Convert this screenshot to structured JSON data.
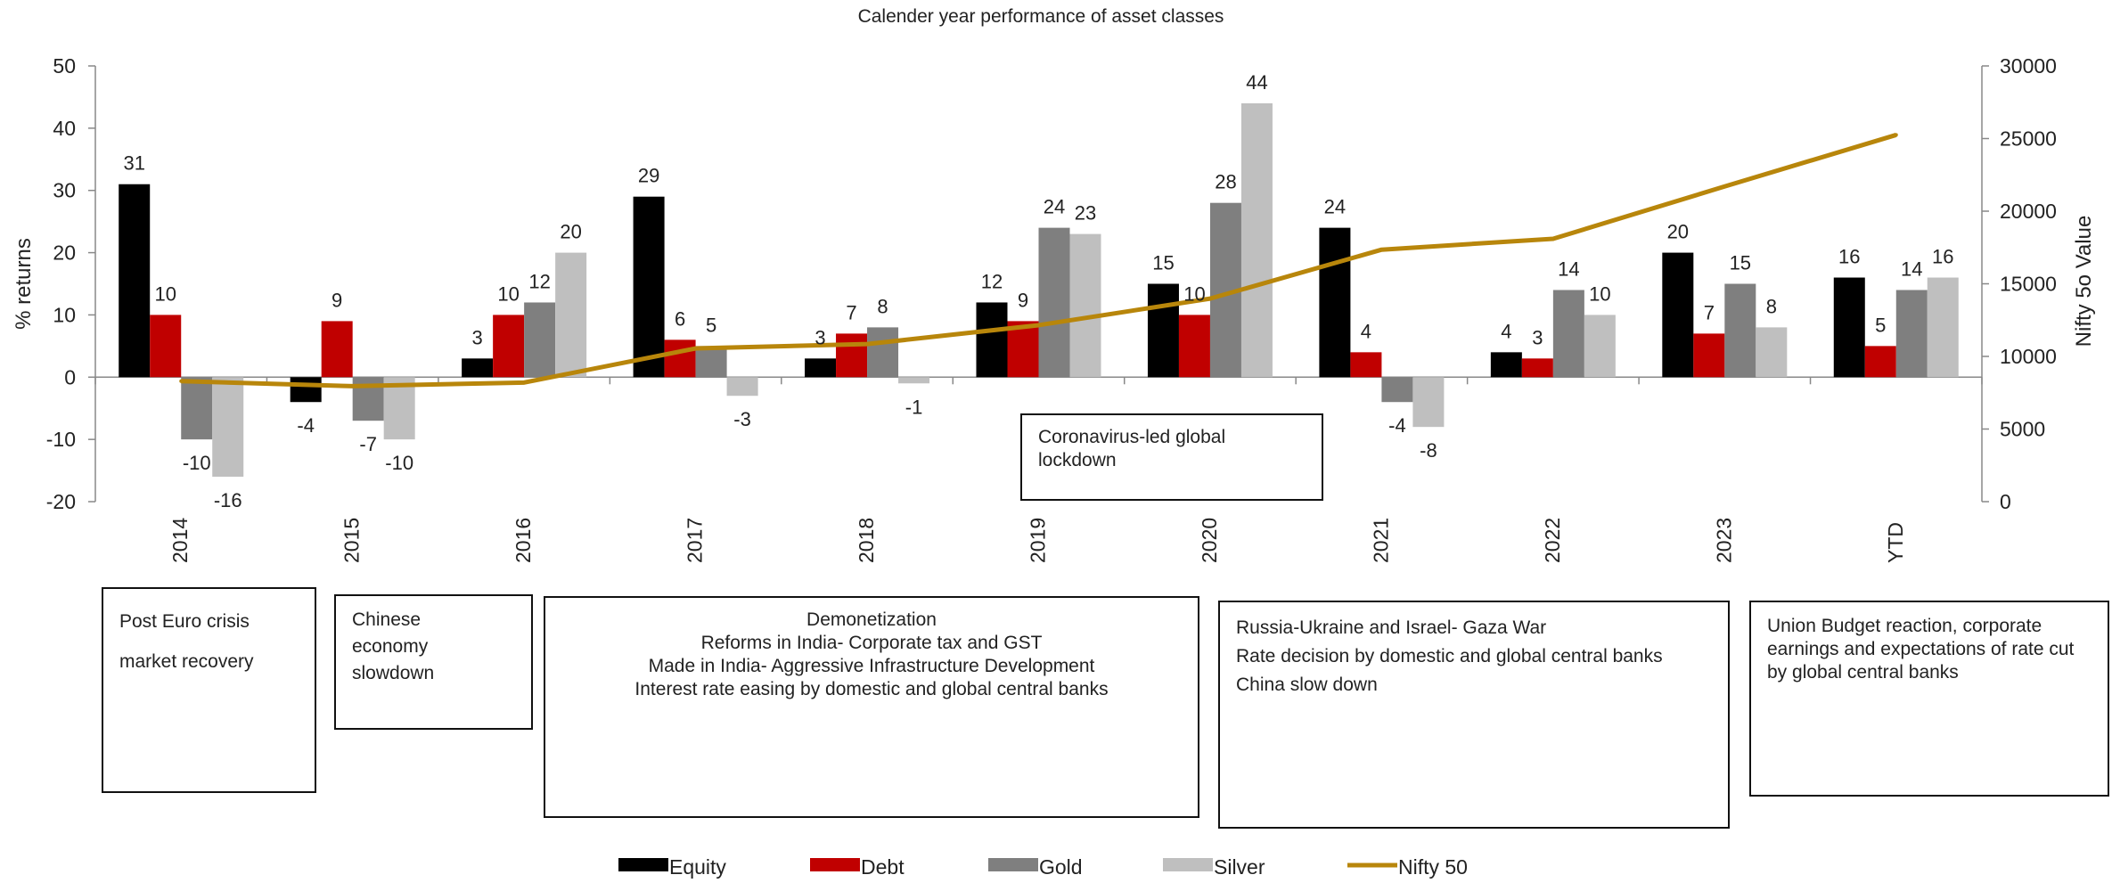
{
  "chart_data": {
    "type": "bar",
    "title": "Calender year performance of asset classes",
    "ylabel": "% returns",
    "y2label": "Nifty 5o Value",
    "ylim": [
      -20,
      50
    ],
    "yticks": [
      50,
      40,
      30,
      20,
      10,
      0,
      -10,
      -20
    ],
    "y2lim": [
      0,
      30000
    ],
    "y2ticks": [
      30000,
      25000,
      20000,
      15000,
      10000,
      5000,
      0
    ],
    "legend": "bottom",
    "categories": [
      "2014",
      "2015",
      "2016",
      "2017",
      "2018",
      "2019",
      "2020",
      "2021",
      "2022",
      "2023",
      "YTD"
    ],
    "series": [
      {
        "name": "Equity",
        "color": "#000000",
        "values": [
          31,
          -4,
          3,
          29,
          3,
          12,
          15,
          24,
          4,
          20,
          16
        ],
        "labels": [
          "31",
          "-4",
          "3",
          "29",
          "3",
          "12",
          "15",
          "24",
          "4",
          "20",
          "16"
        ]
      },
      {
        "name": "Debt",
        "color": "#c00000",
        "values": [
          10,
          9,
          10,
          6,
          7,
          9,
          10,
          4,
          3,
          7,
          5
        ],
        "labels": [
          "10",
          "9",
          "10",
          "6",
          "7",
          "9",
          "10",
          "4",
          "3",
          "7",
          "5"
        ]
      },
      {
        "name": "Gold",
        "color": "#7f7f7f",
        "values": [
          -10,
          -7,
          12,
          5,
          8,
          24,
          28,
          -4,
          14,
          15,
          14
        ],
        "labels": [
          "-10",
          "-7",
          "12",
          "5",
          "8",
          "24",
          "28",
          "-4",
          "14",
          "15",
          "14"
        ]
      },
      {
        "name": "Silver",
        "color": "#bfbfbf",
        "values": [
          -16,
          -10,
          20,
          -3,
          -1,
          23,
          44,
          -8,
          10,
          8,
          16
        ],
        "labels": [
          "-16",
          "-10",
          "20",
          "-3",
          "-1",
          "23",
          "44",
          "-8",
          "10",
          "8",
          "16"
        ]
      }
    ],
    "line_series": {
      "name": "Nifty 50",
      "color": "#b8860b",
      "axis": "secondary",
      "values": [
        8300,
        7950,
        8200,
        10550,
        10850,
        12150,
        13980,
        17350,
        18100,
        21700,
        25250
      ]
    }
  },
  "annotations": {
    "covid": [
      "Coronavirus-led global",
      "lockdown"
    ],
    "box_2014": [
      "Post Euro crisis",
      "market recovery"
    ],
    "box_2015": [
      "Chinese",
      "economy",
      "slowdown"
    ],
    "box_2016": [
      "Demonetization",
      "Reforms in India- Corporate tax and GST",
      "Made in India- Aggressive Infrastructure Development",
      "Interest rate easing by domestic and global central banks"
    ],
    "box_2021": [
      "Russia-Ukraine and Israel- Gaza War",
      "Rate decision by domestic and global central banks",
      "China slow down"
    ],
    "box_ytd": [
      "Union Budget reaction, corporate earnings and expectations of rate cut by global central banks"
    ]
  }
}
